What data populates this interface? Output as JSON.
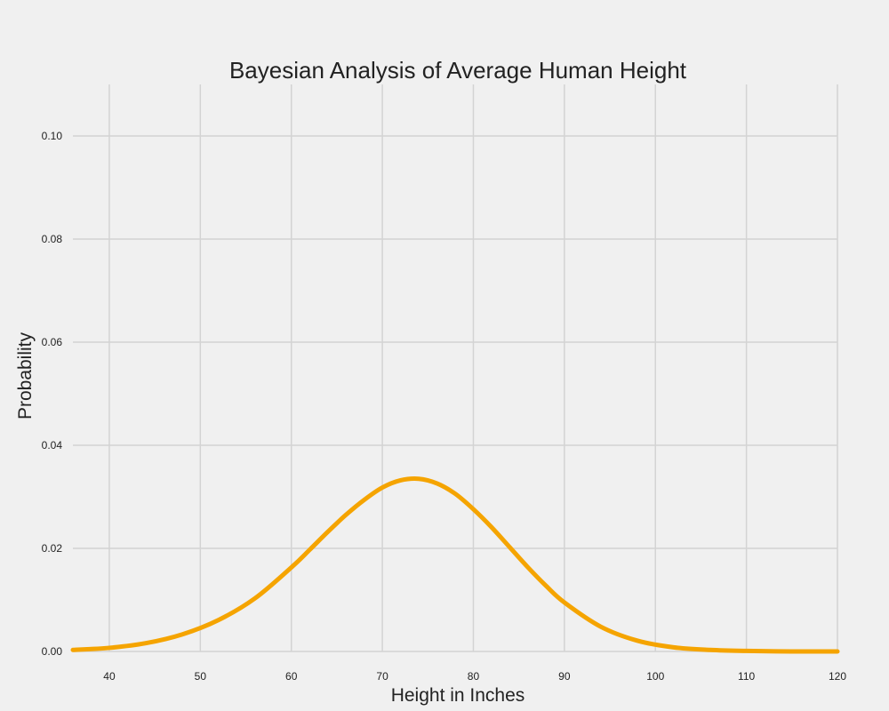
{
  "chart_data": {
    "type": "line",
    "title": "Bayesian Analysis of Average Human Height",
    "xlabel": "Height in Inches",
    "ylabel": "Probability",
    "xlim": [
      36,
      120
    ],
    "ylim": [
      0,
      0.11
    ],
    "x_ticks": [
      40,
      50,
      60,
      70,
      80,
      90,
      100,
      110,
      120
    ],
    "x_tick_labels": [
      "40",
      "50",
      "60",
      "70",
      "80",
      "90",
      "100",
      "110",
      "120"
    ],
    "y_ticks": [
      0.0,
      0.02,
      0.04,
      0.06,
      0.08,
      0.1
    ],
    "y_tick_labels": [
      "0.00",
      "0.02",
      "0.04",
      "0.06",
      "0.08",
      "0.10"
    ],
    "grid": true,
    "line_color": "#f5a400",
    "background_color": "#f0f0f0",
    "grid_color": "#d3d3d3",
    "series": [
      {
        "x": [
          36,
          40,
          44,
          48,
          52,
          56,
          60,
          62,
          64,
          66,
          68,
          70,
          72,
          74,
          76,
          78,
          80,
          82,
          84,
          86,
          88,
          90,
          94,
          98,
          102,
          106,
          110,
          115,
          120
        ],
        "values": [
          0.0003,
          0.0007,
          0.0016,
          0.0033,
          0.0061,
          0.0103,
          0.0163,
          0.0197,
          0.0232,
          0.0265,
          0.0294,
          0.0318,
          0.0332,
          0.0335,
          0.0326,
          0.0306,
          0.0276,
          0.0241,
          0.0202,
          0.0163,
          0.0127,
          0.0095,
          0.0048,
          0.0021,
          0.0008,
          0.0003,
          0.0001,
          0.0,
          0.0
        ]
      }
    ]
  }
}
